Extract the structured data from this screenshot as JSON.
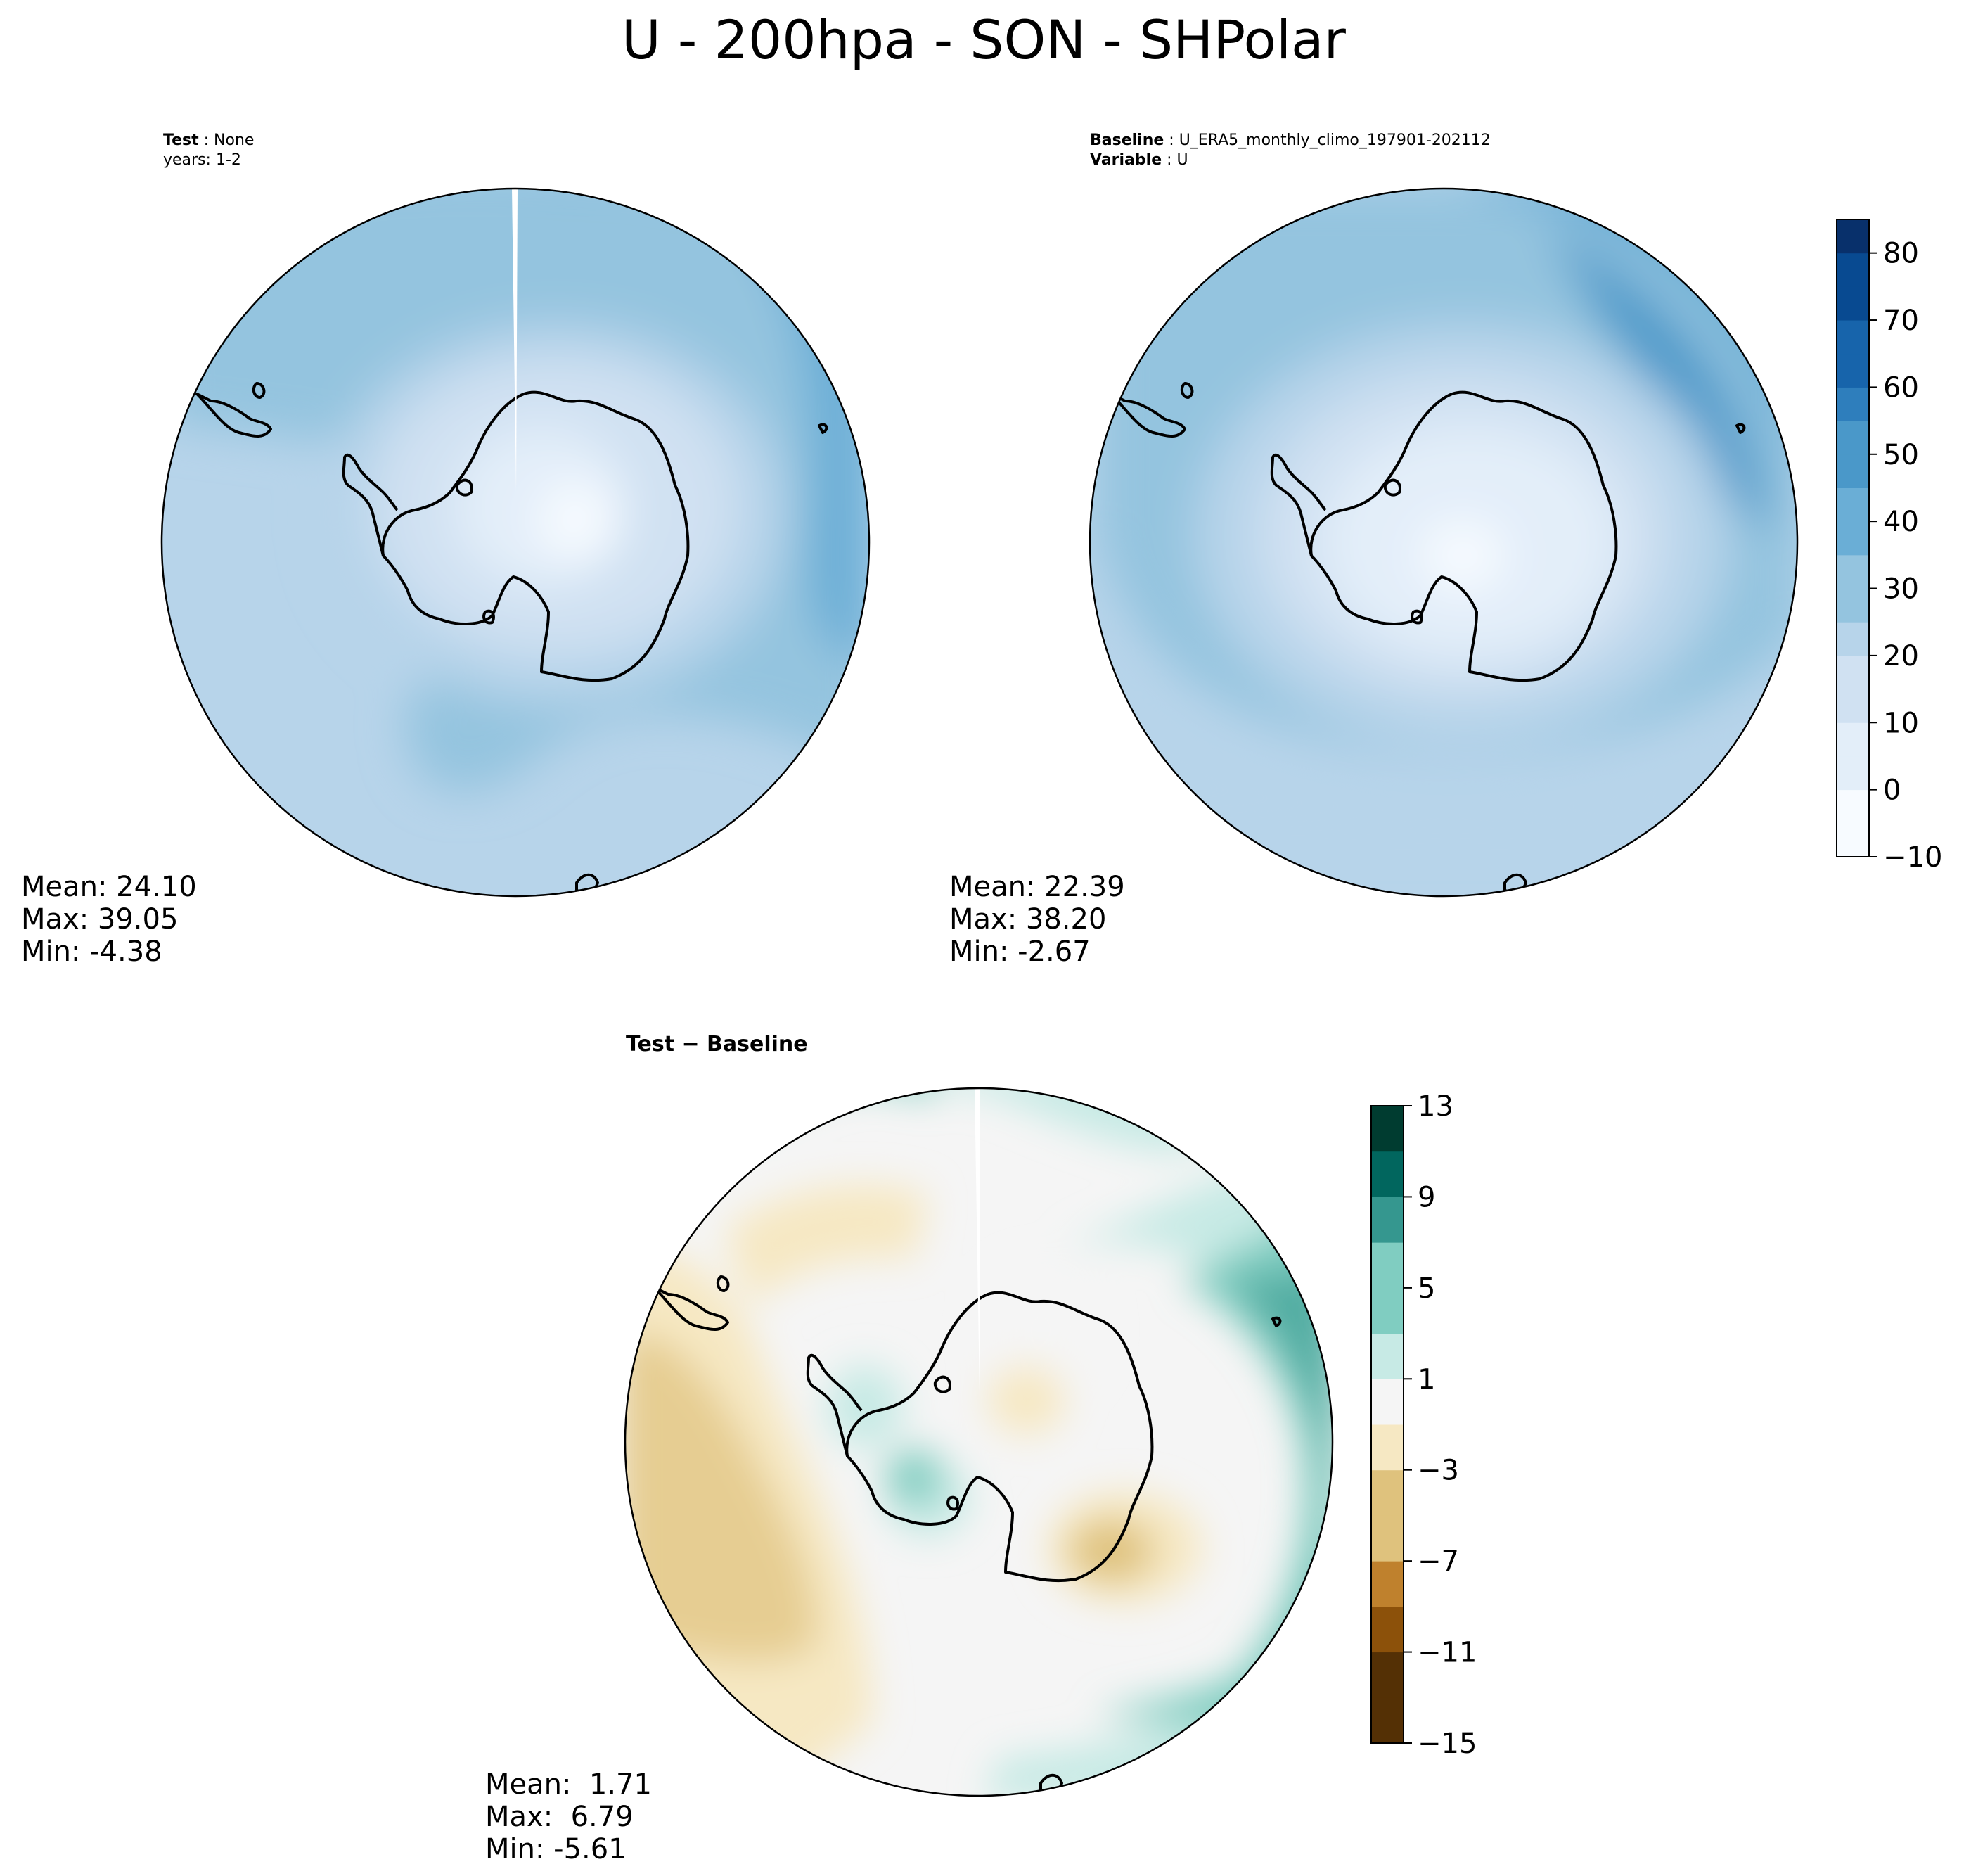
{
  "figure": {
    "title": "U - 200hpa - SON - SHPolar"
  },
  "panels": {
    "test": {
      "label": "Test",
      "label_value": "None",
      "years": "years: 1-2",
      "stats": {
        "mean": "Mean: 24.10",
        "max": "Max: 39.05",
        "min": "Min: -4.38"
      }
    },
    "baseline": {
      "label": "Baseline",
      "label_value": "U_ERA5_monthly_climo_197901-202112",
      "variable_label": "Variable",
      "variable_value": "U",
      "stats": {
        "mean": "Mean: 22.39",
        "max": "Max: 38.20",
        "min": "Min: -2.67"
      }
    },
    "diff": {
      "title": "Test − Baseline",
      "stats": {
        "mean": "Mean:  1.71",
        "max": "Max:  6.79",
        "min": "Min: -5.61"
      }
    }
  },
  "colors": {
    "blues": [
      "#f7fbff",
      "#e3eef9",
      "#d0e1f2",
      "#b7d4ea",
      "#94c4df",
      "#6aaed6",
      "#4a98c9",
      "#2e7ebc",
      "#1764ab",
      "#084a91",
      "#08306b"
    ],
    "brbg": [
      "#543005",
      "#8c510a",
      "#bf812d",
      "#dfc27d",
      "#f6e8c3",
      "#f5f5f5",
      "#c7eae5",
      "#80cdc1",
      "#35978f",
      "#01665e",
      "#003c30"
    ]
  },
  "chart_data": [
    {
      "type": "heatmap",
      "name": "Test",
      "projection": "south polar stereographic",
      "variable": "U",
      "level": "200hpa",
      "season": "SON",
      "mean": 24.1,
      "max": 39.05,
      "min": -4.38
    },
    {
      "type": "heatmap",
      "name": "Baseline",
      "projection": "south polar stereographic",
      "variable": "U",
      "level": "200hpa",
      "season": "SON",
      "mean": 22.39,
      "max": 38.2,
      "min": -2.67,
      "colorbar": {
        "range": [
          -10,
          85
        ],
        "ticks": [
          -10,
          0,
          10,
          20,
          30,
          40,
          50,
          60,
          70,
          80
        ],
        "tick_labels": [
          "−10",
          "0",
          "10",
          "20",
          "30",
          "40",
          "50",
          "60",
          "70",
          "80"
        ],
        "colormap": "Blues"
      }
    },
    {
      "type": "heatmap",
      "name": "Test − Baseline",
      "projection": "south polar stereographic",
      "mean": 1.71,
      "max": 6.79,
      "min": -5.61,
      "colorbar": {
        "range": [
          -15,
          13
        ],
        "ticks": [
          -15,
          -11,
          -7,
          -3,
          1,
          5,
          9,
          13
        ],
        "tick_labels": [
          "−15",
          "−11",
          "−7",
          "−3",
          "1",
          "5",
          "9",
          "13"
        ],
        "colormap": "BrBG"
      }
    }
  ]
}
